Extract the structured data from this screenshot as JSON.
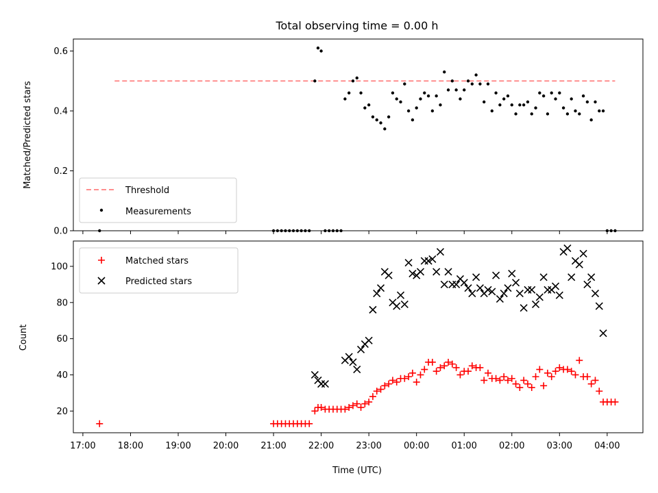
{
  "chart_data": [
    {
      "type": "scatter",
      "title": "Total observing time = 0.00 h",
      "ylabel": "Matched/Predicted stars",
      "ylim": [
        0,
        0.64
      ],
      "yticks": [
        0.0,
        0.2,
        0.4,
        0.6
      ],
      "ytick_labels": [
        "0.0",
        "0.2",
        "0.4",
        "0.6"
      ],
      "legend": {
        "position": "lower-left",
        "entries": [
          "Threshold",
          "Measurements"
        ]
      },
      "threshold": {
        "name": "Threshold",
        "value": 0.5,
        "x_start": "17:40",
        "x_end": "04:10",
        "color": "#ff7f7f"
      },
      "series": [
        {
          "name": "Measurements",
          "color": "#000000",
          "x": [
            "17:21",
            "21:00",
            "21:05",
            "21:10",
            "21:15",
            "21:20",
            "21:25",
            "21:30",
            "21:35",
            "21:40",
            "21:45",
            "21:52",
            "21:56",
            "22:00",
            "22:05",
            "22:10",
            "22:15",
            "22:20",
            "22:25",
            "22:30",
            "22:35",
            "22:40",
            "22:45",
            "22:50",
            "22:55",
            "23:00",
            "23:05",
            "23:10",
            "23:15",
            "23:20",
            "23:25",
            "23:30",
            "23:35",
            "23:40",
            "23:45",
            "23:50",
            "23:55",
            "00:00",
            "00:05",
            "00:10",
            "00:15",
            "00:20",
            "00:25",
            "00:30",
            "00:35",
            "00:40",
            "00:45",
            "00:50",
            "00:55",
            "01:00",
            "01:05",
            "01:10",
            "01:15",
            "01:20",
            "01:25",
            "01:30",
            "01:35",
            "01:40",
            "01:45",
            "01:50",
            "01:55",
            "02:00",
            "02:05",
            "02:10",
            "02:15",
            "02:20",
            "02:25",
            "02:30",
            "02:35",
            "02:40",
            "02:45",
            "02:50",
            "02:55",
            "03:00",
            "03:05",
            "03:10",
            "03:15",
            "03:20",
            "03:25",
            "03:30",
            "03:35",
            "03:40",
            "03:45",
            "03:50",
            "03:55",
            "04:00",
            "04:05",
            "04:10"
          ],
          "y": [
            0.0,
            0.0,
            0.0,
            0.0,
            0.0,
            0.0,
            0.0,
            0.0,
            0.0,
            0.0,
            0.0,
            0.5,
            0.61,
            0.6,
            0.0,
            0.0,
            0.0,
            0.0,
            0.0,
            0.44,
            0.46,
            0.5,
            0.51,
            0.46,
            0.41,
            0.42,
            0.38,
            0.37,
            0.36,
            0.34,
            0.38,
            0.46,
            0.44,
            0.43,
            0.49,
            0.4,
            0.37,
            0.41,
            0.44,
            0.46,
            0.45,
            0.4,
            0.45,
            0.42,
            0.53,
            0.47,
            0.5,
            0.47,
            0.44,
            0.47,
            0.5,
            0.49,
            0.52,
            0.49,
            0.43,
            0.49,
            0.4,
            0.46,
            0.42,
            0.44,
            0.45,
            0.42,
            0.39,
            0.42,
            0.42,
            0.43,
            0.39,
            0.41,
            0.46,
            0.45,
            0.39,
            0.46,
            0.44,
            0.46,
            0.41,
            0.39,
            0.44,
            0.4,
            0.39,
            0.45,
            0.43,
            0.37,
            0.43,
            0.4,
            0.4,
            0.0,
            0.0,
            0.0
          ]
        }
      ]
    },
    {
      "type": "scatter",
      "xlabel": "Time (UTC)",
      "ylabel": "Count",
      "ylim": [
        8,
        114
      ],
      "yticks": [
        20,
        40,
        60,
        80,
        100
      ],
      "ytick_labels": [
        "20",
        "40",
        "60",
        "80",
        "100"
      ],
      "xticks": [
        "17:00",
        "18:00",
        "19:00",
        "20:00",
        "21:00",
        "22:00",
        "23:00",
        "00:00",
        "01:00",
        "02:00",
        "03:00",
        "04:00"
      ],
      "xtick_labels": [
        "17:00",
        "18:00",
        "19:00",
        "20:00",
        "21:00",
        "22:00",
        "23:00",
        "00:00",
        "01:00",
        "02:00",
        "03:00",
        "04:00"
      ],
      "legend": {
        "position": "upper-left",
        "entries": [
          "Matched stars",
          "Predicted stars"
        ]
      },
      "series": [
        {
          "name": "Matched stars",
          "marker": "+",
          "color": "#ff0000",
          "x": [
            "17:21",
            "21:00",
            "21:05",
            "21:10",
            "21:15",
            "21:20",
            "21:25",
            "21:30",
            "21:35",
            "21:40",
            "21:45",
            "21:52",
            "21:56",
            "22:00",
            "22:05",
            "22:10",
            "22:15",
            "22:20",
            "22:25",
            "22:30",
            "22:35",
            "22:40",
            "22:45",
            "22:50",
            "22:55",
            "23:00",
            "23:05",
            "23:10",
            "23:15",
            "23:20",
            "23:25",
            "23:30",
            "23:35",
            "23:40",
            "23:45",
            "23:50",
            "23:55",
            "00:00",
            "00:05",
            "00:10",
            "00:15",
            "00:20",
            "00:25",
            "00:30",
            "00:35",
            "00:40",
            "00:45",
            "00:50",
            "00:55",
            "01:00",
            "01:05",
            "01:10",
            "01:15",
            "01:20",
            "01:25",
            "01:30",
            "01:35",
            "01:40",
            "01:45",
            "01:50",
            "01:55",
            "02:00",
            "02:05",
            "02:10",
            "02:15",
            "02:20",
            "02:25",
            "02:30",
            "02:35",
            "02:40",
            "02:45",
            "02:50",
            "02:55",
            "03:00",
            "03:05",
            "03:10",
            "03:15",
            "03:20",
            "03:25",
            "03:30",
            "03:35",
            "03:40",
            "03:45",
            "03:50",
            "03:55",
            "04:00",
            "04:05",
            "04:10"
          ],
          "y": [
            13,
            13,
            13,
            13,
            13,
            13,
            13,
            13,
            13,
            13,
            13,
            20,
            22,
            22,
            21,
            21,
            21,
            21,
            21,
            21,
            22,
            23,
            24,
            22,
            24,
            25,
            28,
            31,
            32,
            34,
            35,
            37,
            36,
            38,
            38,
            39,
            41,
            36,
            40,
            43,
            47,
            47,
            42,
            44,
            45,
            47,
            46,
            44,
            40,
            42,
            42,
            45,
            44,
            44,
            37,
            41,
            38,
            38,
            37,
            39,
            37,
            38,
            35,
            33,
            37,
            35,
            33,
            39,
            43,
            34,
            41,
            39,
            42,
            44,
            43,
            43,
            42,
            40,
            48,
            39,
            39,
            35,
            37,
            31,
            25,
            25,
            25,
            25
          ]
        },
        {
          "name": "Predicted stars",
          "marker": "x",
          "color": "#000000",
          "x": [
            "21:52",
            "21:56",
            "22:00",
            "22:05",
            "22:30",
            "22:35",
            "22:40",
            "22:45",
            "22:50",
            "22:55",
            "23:00",
            "23:05",
            "23:10",
            "23:15",
            "23:20",
            "23:25",
            "23:30",
            "23:35",
            "23:40",
            "23:45",
            "23:50",
            "23:55",
            "00:00",
            "00:05",
            "00:10",
            "00:15",
            "00:20",
            "00:25",
            "00:30",
            "00:35",
            "00:40",
            "00:45",
            "00:50",
            "00:55",
            "01:00",
            "01:05",
            "01:10",
            "01:15",
            "01:20",
            "01:25",
            "01:30",
            "01:35",
            "01:40",
            "01:45",
            "01:50",
            "01:55",
            "02:00",
            "02:05",
            "02:10",
            "02:15",
            "02:20",
            "02:25",
            "02:30",
            "02:35",
            "02:40",
            "02:45",
            "02:50",
            "02:55",
            "03:00",
            "03:05",
            "03:10",
            "03:15",
            "03:20",
            "03:25",
            "03:30",
            "03:35",
            "03:40",
            "03:45",
            "03:50",
            "03:55"
          ],
          "y": [
            40,
            37,
            35,
            35,
            48,
            50,
            47,
            43,
            54,
            57,
            59,
            76,
            85,
            88,
            97,
            95,
            80,
            78,
            84,
            79,
            102,
            96,
            95,
            97,
            103,
            103,
            104,
            97,
            108,
            90,
            97,
            90,
            90,
            93,
            91,
            88,
            85,
            94,
            88,
            85,
            87,
            86,
            95,
            82,
            85,
            88,
            96,
            91,
            85,
            77,
            87,
            87,
            79,
            83,
            94,
            87,
            87,
            89,
            84,
            108,
            110,
            94,
            103,
            101,
            107,
            90,
            94,
            85,
            78,
            63
          ]
        }
      ]
    }
  ]
}
